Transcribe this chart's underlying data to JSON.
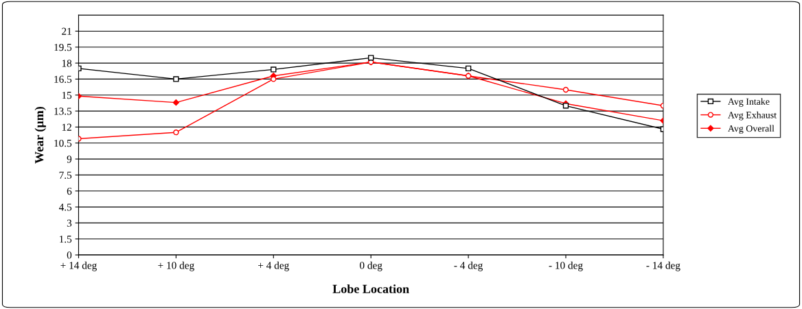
{
  "chart_data": {
    "type": "line",
    "xlabel": "Lobe Location",
    "ylabel": "Wear (µm)",
    "categories": [
      "+ 14 deg",
      "+ 10 deg",
      "+ 4 deg",
      "0 deg",
      "- 4 deg",
      "- 10 deg",
      "- 14 deg"
    ],
    "series": [
      {
        "name": "Avg Intake",
        "color": "#000000",
        "marker": "square",
        "values": [
          17.5,
          16.5,
          17.4,
          18.5,
          17.5,
          14.0,
          11.8
        ]
      },
      {
        "name": "Avg Exhaust",
        "color": "#ff0000",
        "marker": "circle",
        "values": [
          10.9,
          11.5,
          16.5,
          18.1,
          16.8,
          15.5,
          14.0
        ]
      },
      {
        "name": "Avg Overall",
        "color": "#ff0000",
        "marker": "diamond",
        "values": [
          14.9,
          14.3,
          16.8,
          18.1,
          16.8,
          14.2,
          12.6
        ]
      }
    ],
    "ylim": [
      0,
      22.5
    ],
    "yticks": [
      0,
      1.5,
      3,
      4.5,
      6,
      7.5,
      9,
      10.5,
      12,
      13.5,
      15,
      16.5,
      18,
      19.5,
      21
    ],
    "grid": "y",
    "legend": "right",
    "line_style": "solid"
  }
}
